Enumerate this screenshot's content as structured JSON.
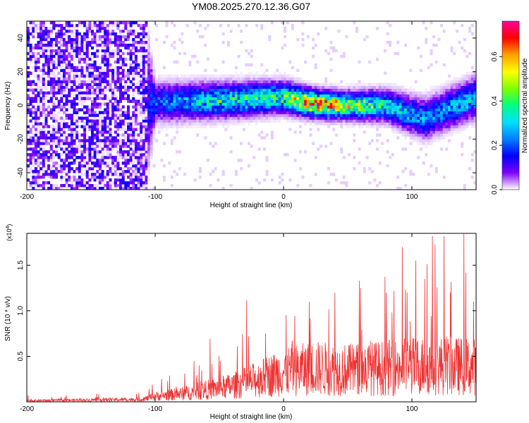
{
  "title": "YM08.2025.270.12.36.G07",
  "chart_data": [
    {
      "type": "heatmap",
      "xlabel": "Height of straight line (km)",
      "ylabel": "Frequency (Hz)",
      "xlim": [
        -200,
        150
      ],
      "ylim": [
        -50,
        50
      ],
      "xticks": [
        {
          "value": -200,
          "label": "-200"
        },
        {
          "value": -100,
          "label": "-100"
        },
        {
          "value": 0,
          "label": "0"
        },
        {
          "value": 100,
          "label": "100"
        }
      ],
      "yticks": [
        {
          "value": -40,
          "label": "-40"
        },
        {
          "value": -20,
          "label": "-20"
        },
        {
          "value": 0,
          "label": "0"
        },
        {
          "value": 20,
          "label": "20"
        },
        {
          "value": 40,
          "label": "40"
        }
      ],
      "colorbar": {
        "label": "Normalized spectral amplitude",
        "range": [
          0,
          0.76
        ],
        "ticks": [
          {
            "value": 0.0,
            "label": "0.0"
          },
          {
            "value": 0.2,
            "label": "0.2"
          },
          {
            "value": 0.4,
            "label": "0.4"
          },
          {
            "value": 0.6,
            "label": "0.6"
          }
        ],
        "colors": [
          "#ffffff",
          "#7f00ff",
          "#0000ff",
          "#0080ff",
          "#00e0ff",
          "#00ff80",
          "#80ff00",
          "#ffff00",
          "#ffa000",
          "#ff0000",
          "#ff00a0"
        ]
      },
      "profile": [
        {
          "x": -200,
          "center": 0,
          "spread": 50,
          "peak": 0.1
        },
        {
          "x": -110,
          "center": 0,
          "spread": 50,
          "peak": 0.1
        },
        {
          "x": -100,
          "center": 2,
          "spread": 10,
          "peak": 0.2
        },
        {
          "x": -50,
          "center": 3,
          "spread": 9,
          "peak": 0.35
        },
        {
          "x": 0,
          "center": 5,
          "spread": 8,
          "peak": 0.4
        },
        {
          "x": 25,
          "center": 1,
          "spread": 7,
          "peak": 0.7
        },
        {
          "x": 50,
          "center": 0,
          "spread": 7,
          "peak": 0.5
        },
        {
          "x": 80,
          "center": 0,
          "spread": 8,
          "peak": 0.35
        },
        {
          "x": 110,
          "center": -8,
          "spread": 10,
          "peak": 0.25
        },
        {
          "x": 150,
          "center": 5,
          "spread": 10,
          "peak": 0.3
        }
      ]
    },
    {
      "type": "line",
      "xlabel": "Height of straight line (km)",
      "ylabel": "SNR (10 * v/v)",
      "yscale_label": "(x10",
      "yscale_exponent": "4",
      "yscale_suffix": ")",
      "xlim": [
        -200,
        150
      ],
      "ylim": [
        0,
        18500
      ],
      "xticks": [
        {
          "value": -200,
          "label": "-200"
        },
        {
          "value": -100,
          "label": "-100"
        },
        {
          "value": 0,
          "label": "0"
        },
        {
          "value": 100,
          "label": "100"
        }
      ],
      "yticks": [
        {
          "value": 5000,
          "label": "0.5"
        },
        {
          "value": 10000,
          "label": "1.0"
        },
        {
          "value": 15000,
          "label": "1.5"
        }
      ],
      "series": [
        {
          "name": "SNR",
          "color": "#ee3333",
          "envelope": [
            {
              "x": -200,
              "y": 150
            },
            {
              "x": -110,
              "y": 300
            },
            {
              "x": -100,
              "y": 700
            },
            {
              "x": -80,
              "y": 1000
            },
            {
              "x": -60,
              "y": 1500
            },
            {
              "x": -40,
              "y": 2000
            },
            {
              "x": -20,
              "y": 2800
            },
            {
              "x": 0,
              "y": 3800
            },
            {
              "x": 25,
              "y": 4200
            },
            {
              "x": 50,
              "y": 4000
            },
            {
              "x": 75,
              "y": 4200
            },
            {
              "x": 100,
              "y": 4500
            },
            {
              "x": 125,
              "y": 4500
            },
            {
              "x": 150,
              "y": 4400
            }
          ],
          "spikes": [
            {
              "x": -36,
              "y": 6100
            },
            {
              "x": -14,
              "y": 7500
            },
            {
              "x": 2,
              "y": 9500
            },
            {
              "x": 20,
              "y": 11000
            },
            {
              "x": 40,
              "y": 12000
            },
            {
              "x": 60,
              "y": 12500
            },
            {
              "x": 80,
              "y": 12000
            },
            {
              "x": 95,
              "y": 12300
            },
            {
              "x": 110,
              "y": 13500
            },
            {
              "x": 116,
              "y": 18200
            },
            {
              "x": 130,
              "y": 12000
            },
            {
              "x": 142,
              "y": 14200
            },
            {
              "x": 148,
              "y": 11000
            }
          ]
        }
      ]
    }
  ]
}
